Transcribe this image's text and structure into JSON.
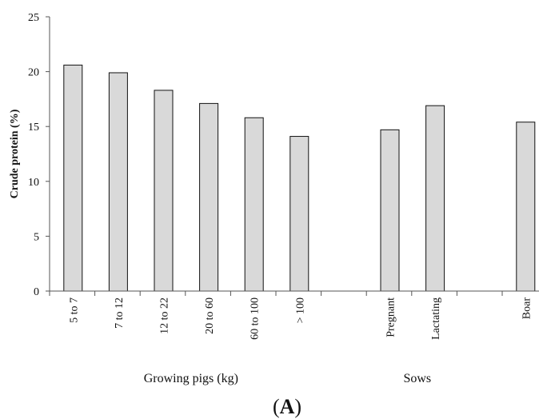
{
  "chart_data": {
    "type": "bar",
    "title": "",
    "ylabel": "Crude protein (%)",
    "xlabel": "",
    "ylim": [
      0,
      25
    ],
    "yticks": [
      0,
      5,
      10,
      15,
      20,
      25
    ],
    "grid": false,
    "categories": [
      "5 to 7",
      "7 to 12",
      "12 to 22",
      "20 to 60",
      "60 to 100",
      "> 100",
      "Pregnant",
      "Lactating",
      "Boar"
    ],
    "values": [
      20.6,
      19.9,
      18.3,
      17.1,
      15.8,
      14.1,
      14.7,
      16.9,
      15.4
    ],
    "groups": [
      {
        "label": "Growing pigs (kg)",
        "categories": [
          "5 to 7",
          "7 to 12",
          "12 to 22",
          "20 to 60",
          "60 to 100",
          "> 100"
        ]
      },
      {
        "label": "Sows",
        "categories": [
          "Pregnant",
          "Lactating"
        ]
      },
      {
        "label": "",
        "categories": [
          "Boar"
        ]
      }
    ],
    "colors": {
      "bar_fill": "#d9d9d9",
      "bar_stroke": "#111111"
    }
  },
  "panel_label": {
    "open": "(",
    "letter": "A",
    "close": ")"
  }
}
